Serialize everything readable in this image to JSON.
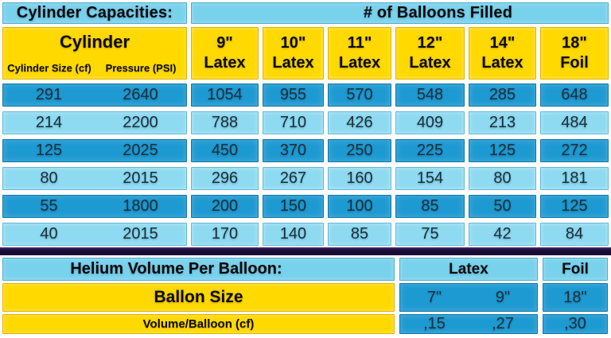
{
  "main_table": {
    "title_left": "Cylinder Capacities:",
    "title_right": "# of Balloons Filled",
    "cylinder_group": {
      "title": "Cylinder",
      "size_label": "Cylinder Size (cf)",
      "pressure_label": "Pressure (PSI)"
    },
    "columns": [
      {
        "size": "9\"",
        "material": "Latex"
      },
      {
        "size": "10\"",
        "material": "Latex"
      },
      {
        "size": "11\"",
        "material": "Latex"
      },
      {
        "size": "12\"",
        "material": "Latex"
      },
      {
        "size": "14\"",
        "material": "Latex"
      },
      {
        "size": "18\"",
        "material": "Foil"
      }
    ],
    "rows": [
      {
        "size": "291",
        "pressure": "2640",
        "values": [
          "1054",
          "955",
          "570",
          "548",
          "285",
          "648"
        ]
      },
      {
        "size": "214",
        "pressure": "2200",
        "values": [
          "788",
          "710",
          "426",
          "409",
          "213",
          "484"
        ]
      },
      {
        "size": "125",
        "pressure": "2025",
        "values": [
          "450",
          "370",
          "250",
          "225",
          "125",
          "272"
        ]
      },
      {
        "size": "80",
        "pressure": "2015",
        "values": [
          "296",
          "267",
          "160",
          "154",
          "80",
          "181"
        ]
      },
      {
        "size": "55",
        "pressure": "1800",
        "values": [
          "200",
          "150",
          "100",
          "85",
          "50",
          "125"
        ]
      },
      {
        "size": "40",
        "pressure": "2015",
        "values": [
          "170",
          "140",
          "85",
          "75",
          "42",
          "84"
        ]
      }
    ]
  },
  "bottom_table": {
    "title": "Helium Volume Per Balloon:",
    "latex_label": "Latex",
    "foil_label": "Foil",
    "balloon_size_label": "Ballon Size",
    "volume_label": "Volume/Balloon (cf)",
    "latex_sizes": [
      "7\"",
      "9\""
    ],
    "foil_size": "18\"",
    "latex_volumes": [
      ",15",
      ",27"
    ],
    "foil_volume": ",30"
  },
  "colors": {
    "header_blue": "#79d2ec",
    "yellow": "#ffd900",
    "row_dark_blue": "#1e9ad2",
    "row_light_blue": "#8edaf1",
    "separator_navy": "#1d0f3a",
    "text_dark": "#1c313c"
  },
  "chart_data": [
    {
      "type": "table",
      "title": "Cylinder Capacities: — # of Balloons Filled",
      "columns": [
        "Cylinder Size (cf)",
        "Pressure (PSI)",
        "9\" Latex",
        "10\" Latex",
        "11\" Latex",
        "12\" Latex",
        "14\" Latex",
        "18\" Foil"
      ],
      "rows": [
        [
          291,
          2640,
          1054,
          955,
          570,
          548,
          285,
          648
        ],
        [
          214,
          2200,
          788,
          710,
          426,
          409,
          213,
          484
        ],
        [
          125,
          2025,
          450,
          370,
          250,
          225,
          125,
          272
        ],
        [
          80,
          2015,
          296,
          267,
          160,
          154,
          80,
          181
        ],
        [
          55,
          1800,
          200,
          150,
          100,
          85,
          50,
          125
        ],
        [
          40,
          2015,
          170,
          140,
          85,
          75,
          42,
          84
        ]
      ]
    },
    {
      "type": "table",
      "title": "Helium Volume Per Balloon:",
      "columns": [
        "Ballon Size",
        "Latex 7\"",
        "Latex 9\"",
        "Foil 18\""
      ],
      "rows": [
        [
          "Volume/Balloon (cf)",
          ",15",
          ",27",
          ",30"
        ]
      ]
    }
  ]
}
